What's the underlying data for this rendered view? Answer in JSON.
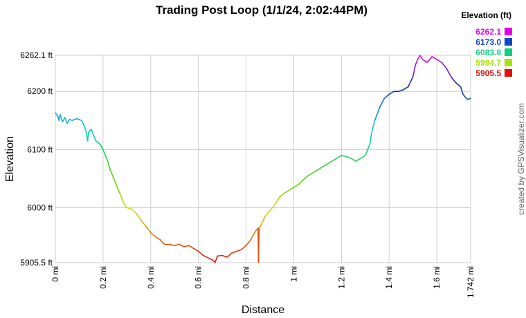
{
  "chart_data": {
    "type": "line",
    "title": "Trading Post Loop (1/1/24, 2:02:44PM)",
    "xlabel": "Distance",
    "ylabel": "Elevation",
    "xlim": [
      0,
      1.742
    ],
    "ylim": [
      5905.5,
      6262.1
    ],
    "x_ticks": [
      {
        "value": 0,
        "label": "0 mi"
      },
      {
        "value": 0.2,
        "label": "0.2 mi"
      },
      {
        "value": 0.4,
        "label": "0.4 mi"
      },
      {
        "value": 0.6,
        "label": "0.6 mi"
      },
      {
        "value": 0.8,
        "label": "0.8 mi"
      },
      {
        "value": 1.0,
        "label": "1 mi"
      },
      {
        "value": 1.2,
        "label": "1.2 mi"
      },
      {
        "value": 1.4,
        "label": "1.4 mi"
      },
      {
        "value": 1.6,
        "label": "1.6 mi"
      },
      {
        "value": 1.742,
        "label": "1.742 mi"
      }
    ],
    "y_ticks": [
      {
        "value": 5905.5,
        "label": "5905.5 ft"
      },
      {
        "value": 6000,
        "label": "6000 ft"
      },
      {
        "value": 6100,
        "label": "6100 ft"
      },
      {
        "value": 6200,
        "label": "6200 ft"
      },
      {
        "value": 6262.1,
        "label": "6262.1 ft"
      }
    ],
    "grid": true,
    "legend": {
      "placement": "top-right",
      "title": "Elevation (ft)",
      "entries": [
        {
          "label": "6262.1",
          "color": "#e600e6"
        },
        {
          "label": "6173.0",
          "color": "#1048c8"
        },
        {
          "label": "6083.8",
          "color": "#10d080"
        },
        {
          "label": "5994.7",
          "color": "#a8e010"
        },
        {
          "label": "5905.5",
          "color": "#e01010"
        }
      ]
    },
    "series": [
      {
        "points": [
          [
            0.0,
            6163
          ],
          [
            0.01,
            6158
          ],
          [
            0.015,
            6150
          ],
          [
            0.02,
            6160
          ],
          [
            0.03,
            6148
          ],
          [
            0.04,
            6155
          ],
          [
            0.05,
            6145
          ],
          [
            0.06,
            6152
          ],
          [
            0.07,
            6150
          ],
          [
            0.09,
            6153
          ],
          [
            0.11,
            6150
          ],
          [
            0.12,
            6142
          ],
          [
            0.13,
            6130
          ],
          [
            0.135,
            6115
          ],
          [
            0.14,
            6130
          ],
          [
            0.15,
            6135
          ],
          [
            0.16,
            6125
          ],
          [
            0.17,
            6115
          ],
          [
            0.18,
            6112
          ],
          [
            0.19,
            6108
          ],
          [
            0.2,
            6100
          ],
          [
            0.21,
            6090
          ],
          [
            0.22,
            6080
          ],
          [
            0.23,
            6065
          ],
          [
            0.24,
            6055
          ],
          [
            0.25,
            6045
          ],
          [
            0.26,
            6035
          ],
          [
            0.27,
            6025
          ],
          [
            0.28,
            6015
          ],
          [
            0.29,
            6005
          ],
          [
            0.3,
            6000
          ],
          [
            0.32,
            5998
          ],
          [
            0.34,
            5990
          ],
          [
            0.36,
            5978
          ],
          [
            0.38,
            5968
          ],
          [
            0.4,
            5957
          ],
          [
            0.42,
            5950
          ],
          [
            0.44,
            5945
          ],
          [
            0.45,
            5940
          ],
          [
            0.46,
            5937
          ],
          [
            0.48,
            5937
          ],
          [
            0.5,
            5935
          ],
          [
            0.52,
            5937
          ],
          [
            0.54,
            5933
          ],
          [
            0.56,
            5935
          ],
          [
            0.58,
            5930
          ],
          [
            0.6,
            5925
          ],
          [
            0.62,
            5918
          ],
          [
            0.64,
            5914
          ],
          [
            0.66,
            5910
          ],
          [
            0.67,
            5906
          ],
          [
            0.68,
            5917
          ],
          [
            0.7,
            5918
          ],
          [
            0.72,
            5915
          ],
          [
            0.74,
            5922
          ],
          [
            0.76,
            5925
          ],
          [
            0.78,
            5928
          ],
          [
            0.8,
            5935
          ],
          [
            0.82,
            5945
          ],
          [
            0.84,
            5960
          ],
          [
            0.85,
            5965
          ],
          [
            0.852,
            5906
          ],
          [
            0.855,
            5966
          ],
          [
            0.86,
            5968
          ],
          [
            0.88,
            5985
          ],
          [
            0.9,
            5995
          ],
          [
            0.92,
            6005
          ],
          [
            0.94,
            6018
          ],
          [
            0.96,
            6025
          ],
          [
            0.98,
            6030
          ],
          [
            1.0,
            6035
          ],
          [
            1.02,
            6040
          ],
          [
            1.04,
            6048
          ],
          [
            1.06,
            6055
          ],
          [
            1.08,
            6060
          ],
          [
            1.1,
            6065
          ],
          [
            1.12,
            6070
          ],
          [
            1.14,
            6075
          ],
          [
            1.16,
            6080
          ],
          [
            1.18,
            6085
          ],
          [
            1.2,
            6090
          ],
          [
            1.22,
            6088
          ],
          [
            1.24,
            6085
          ],
          [
            1.26,
            6080
          ],
          [
            1.28,
            6085
          ],
          [
            1.3,
            6090
          ],
          [
            1.31,
            6100
          ],
          [
            1.32,
            6110
          ],
          [
            1.325,
            6125
          ],
          [
            1.33,
            6135
          ],
          [
            1.34,
            6150
          ],
          [
            1.36,
            6172
          ],
          [
            1.38,
            6188
          ],
          [
            1.4,
            6195
          ],
          [
            1.42,
            6200
          ],
          [
            1.44,
            6200
          ],
          [
            1.46,
            6203
          ],
          [
            1.48,
            6208
          ],
          [
            1.5,
            6225
          ],
          [
            1.51,
            6245
          ],
          [
            1.52,
            6255
          ],
          [
            1.53,
            6262
          ],
          [
            1.54,
            6255
          ],
          [
            1.56,
            6250
          ],
          [
            1.58,
            6260
          ],
          [
            1.6,
            6255
          ],
          [
            1.62,
            6250
          ],
          [
            1.64,
            6240
          ],
          [
            1.66,
            6225
          ],
          [
            1.68,
            6215
          ],
          [
            1.7,
            6208
          ],
          [
            1.71,
            6195
          ],
          [
            1.72,
            6190
          ],
          [
            1.73,
            6186
          ],
          [
            1.742,
            6188
          ]
        ]
      }
    ],
    "credit": "created by GPSVisualizer.com"
  }
}
